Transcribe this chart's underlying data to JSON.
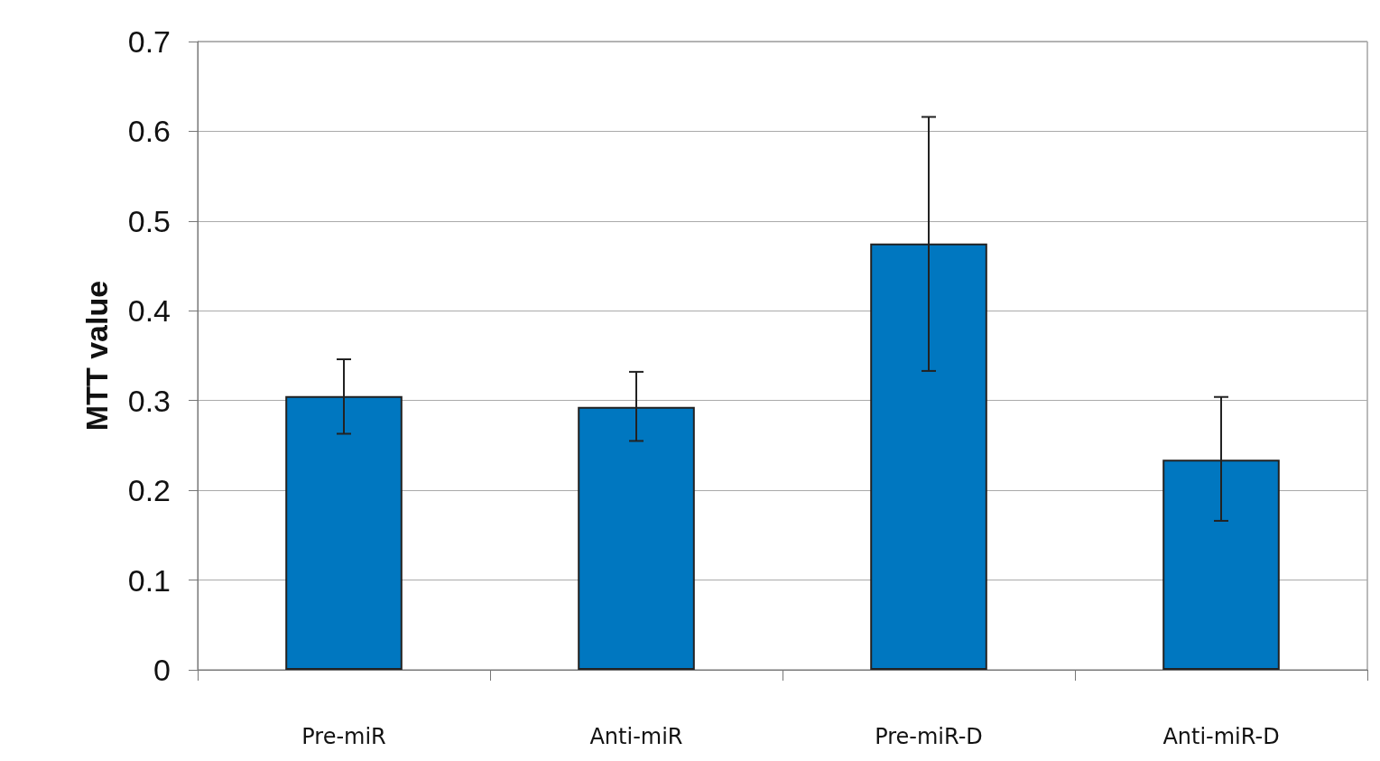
{
  "chart_data": {
    "type": "bar",
    "ylabel": "MTT value",
    "categories": [
      "Pre-miR",
      "Anti-miR",
      "Pre-miR-D",
      "Anti-miR-D"
    ],
    "values": [
      0.305,
      0.293,
      0.475,
      0.234
    ],
    "errors": [
      [
        0.263,
        0.346
      ],
      [
        0.255,
        0.332
      ],
      [
        0.333,
        0.616
      ],
      [
        0.166,
        0.304
      ]
    ],
    "color": "#0077c0",
    "ylim": [
      0,
      0.7
    ],
    "yticks": [
      0,
      0.1,
      0.2,
      0.3,
      0.4,
      0.5,
      0.6,
      0.7
    ],
    "grid": "y"
  }
}
